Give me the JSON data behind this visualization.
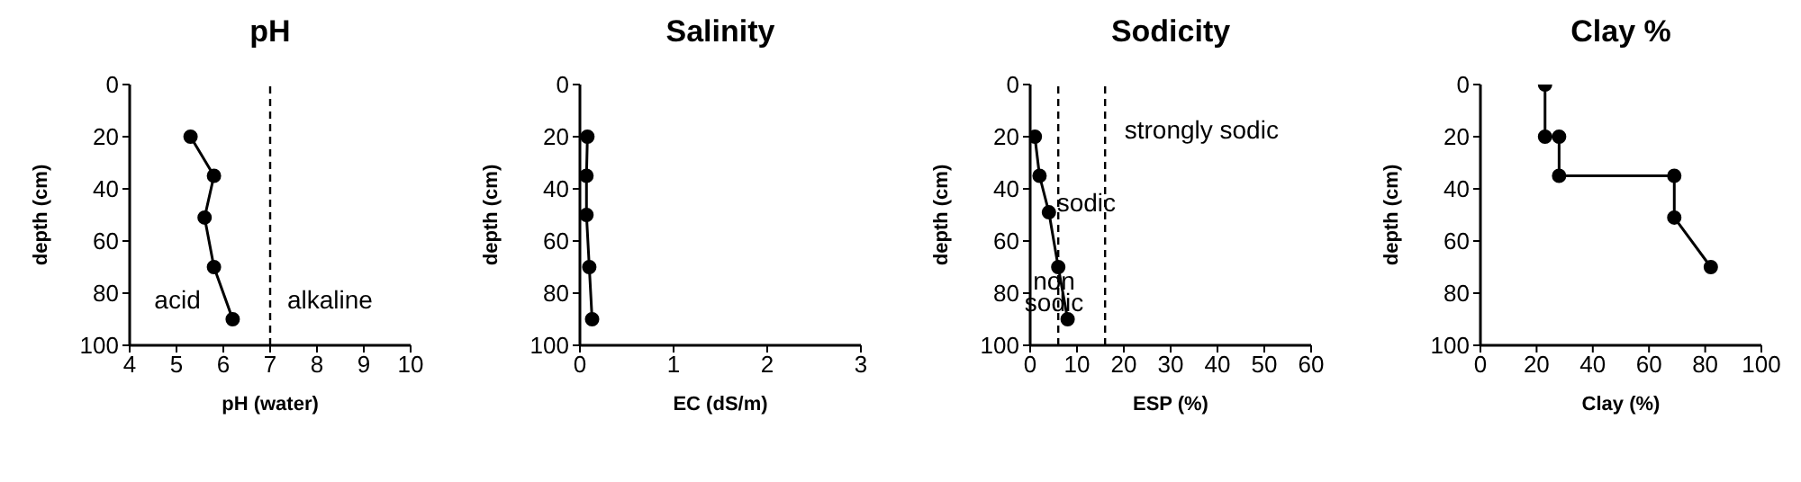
{
  "chart_data": [
    {
      "type": "line",
      "title": "pH",
      "xlabel": "pH (water)",
      "ylabel": "depth (cm)",
      "xlim": [
        4,
        10
      ],
      "xticks": [
        4,
        5,
        6,
        7,
        8,
        9,
        10
      ],
      "ylim": [
        100,
        0
      ],
      "yticks": [
        0,
        20,
        40,
        60,
        80,
        100
      ],
      "marker": "circle",
      "line_style": "solid",
      "series": [
        {
          "color": "#000000",
          "x": [
            5.3,
            5.8,
            5.6,
            5.8,
            6.2
          ],
          "values": [
            20,
            35,
            51,
            70,
            90
          ]
        }
      ],
      "ref_lines": [
        {
          "axis": "x",
          "value": 7,
          "line_style": "dashed",
          "color": "#000000"
        }
      ],
      "annotations": [
        "acid",
        "alkaline"
      ]
    },
    {
      "type": "line",
      "title": "Salinity",
      "xlabel": "EC (dS/m)",
      "ylabel": "depth (cm)",
      "xlim": [
        0,
        3
      ],
      "xticks": [
        0,
        1,
        2,
        3
      ],
      "ylim": [
        100,
        0
      ],
      "yticks": [
        0,
        20,
        40,
        60,
        80,
        100
      ],
      "marker": "circle",
      "line_style": "solid",
      "series": [
        {
          "color": "#000000",
          "x": [
            0.08,
            0.07,
            0.07,
            0.1,
            0.13
          ],
          "values": [
            20,
            35,
            50,
            70,
            90
          ]
        }
      ]
    },
    {
      "type": "line",
      "title": "Sodicity",
      "xlabel": "ESP (%)",
      "ylabel": "depth (cm)",
      "xlim": [
        0,
        60
      ],
      "xticks": [
        0,
        10,
        20,
        30,
        40,
        50,
        60
      ],
      "ylim": [
        100,
        0
      ],
      "yticks": [
        0,
        20,
        40,
        60,
        80,
        100
      ],
      "marker": "circle",
      "line_style": "solid",
      "series": [
        {
          "color": "#000000",
          "x": [
            1,
            2,
            4,
            6,
            8
          ],
          "values": [
            20,
            35,
            49,
            70,
            90
          ]
        }
      ],
      "ref_lines": [
        {
          "axis": "x",
          "value": 6,
          "line_style": "dashed",
          "color": "#000000"
        },
        {
          "axis": "x",
          "value": 16,
          "line_style": "dashed",
          "color": "#000000"
        }
      ],
      "annotations": [
        "strongly sodic",
        "sodic",
        "non\nsodic"
      ]
    },
    {
      "type": "line",
      "title": "Clay %",
      "xlabel": "Clay (%)",
      "ylabel": "depth (cm)",
      "xlim": [
        0,
        100
      ],
      "xticks": [
        0,
        20,
        40,
        60,
        80,
        100
      ],
      "ylim": [
        100,
        0
      ],
      "yticks": [
        0,
        20,
        40,
        60,
        80,
        100
      ],
      "marker": "circle",
      "line_style": "solid",
      "series": [
        {
          "color": "#000000",
          "x": [
            23,
            23,
            28,
            28,
            69,
            69,
            82
          ],
          "values": [
            0,
            20,
            20,
            35,
            35,
            51,
            70
          ]
        }
      ]
    }
  ]
}
